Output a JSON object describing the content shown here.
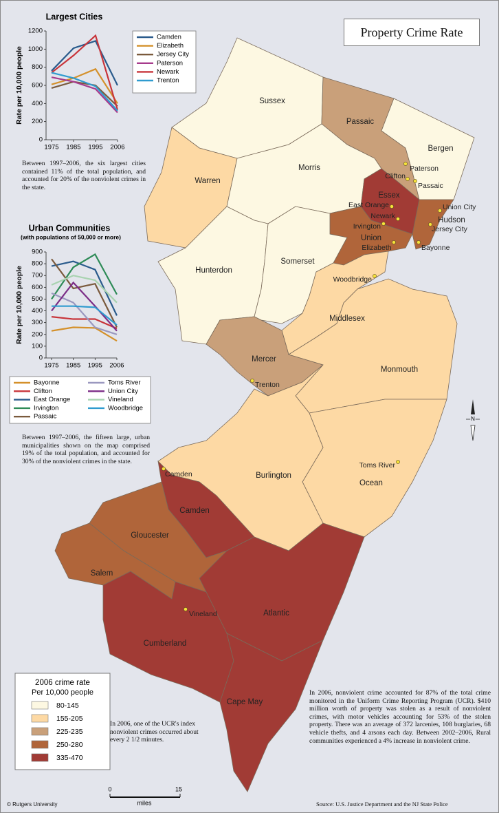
{
  "title": "Property Crime Rate",
  "chart_data": [
    {
      "type": "line",
      "title": "Largest Cities",
      "y_label": "Rate per 10,000 people",
      "categories": [
        "1975",
        "1985",
        "1995",
        "2006"
      ],
      "ylim": [
        0,
        1200
      ],
      "yticks": [
        0,
        200,
        400,
        600,
        800,
        1000,
        1200
      ],
      "series": [
        {
          "name": "Camden",
          "color": "#2a5b8c",
          "values": [
            760,
            1010,
            1090,
            600
          ]
        },
        {
          "name": "Elizabeth",
          "color": "#d4902a",
          "values": [
            610,
            680,
            780,
            400
          ]
        },
        {
          "name": "Jersey City",
          "color": "#7a5a3c",
          "values": [
            570,
            640,
            600,
            370
          ]
        },
        {
          "name": "Paterson",
          "color": "#a63a8c",
          "values": [
            690,
            640,
            560,
            300
          ]
        },
        {
          "name": "Newark",
          "color": "#c8343a",
          "values": [
            740,
            930,
            1150,
            330
          ]
        },
        {
          "name": "Trenton",
          "color": "#2f9bcf",
          "values": [
            740,
            680,
            590,
            320
          ]
        }
      ],
      "note": "Between 1997–2006, the six largest cities contained 11% of the total population, and accounted for 20% of the nonviolent crimes in the state."
    },
    {
      "type": "line",
      "title": "Urban Communities",
      "subtitle": "(with populations of 50,000 or more)",
      "y_label": "Rate per 10,000 people",
      "categories": [
        "1975",
        "1985",
        "1995",
        "2006"
      ],
      "ylim": [
        0,
        900
      ],
      "yticks": [
        0,
        100,
        200,
        300,
        400,
        500,
        600,
        700,
        800,
        900
      ],
      "series": [
        {
          "name": "Bayonne",
          "color": "#d4902a",
          "values": [
            230,
            260,
            255,
            145
          ]
        },
        {
          "name": "Clifton",
          "color": "#c8343a",
          "values": [
            350,
            330,
            330,
            250
          ]
        },
        {
          "name": "East Orange",
          "color": "#2a5b8c",
          "values": [
            780,
            820,
            750,
            360
          ]
        },
        {
          "name": "Irvington",
          "color": "#2e8b57",
          "values": [
            500,
            770,
            880,
            540
          ]
        },
        {
          "name": "Passaic",
          "color": "#7a5a3c",
          "values": [
            840,
            590,
            630,
            260
          ]
        },
        {
          "name": "Toms River",
          "color": "#9a98bf",
          "values": [
            550,
            470,
            260,
            200
          ]
        },
        {
          "name": "Union City",
          "color": "#7b2c86",
          "values": [
            400,
            640,
            440,
            230
          ]
        },
        {
          "name": "Vineland",
          "color": "#a8d3b0",
          "values": [
            620,
            700,
            660,
            470
          ]
        },
        {
          "name": "Woodbridge",
          "color": "#2f9bcf",
          "values": [
            440,
            440,
            430,
            280
          ]
        }
      ],
      "note": "Between 1997–2006, the fifteen large, urban municipalities shown on the map comprised 19% of the total population, and accounted for 30% of the nonviolent crimes in the state."
    }
  ],
  "map_legend": {
    "title": "2006 crime rate",
    "subtitle": "Per 10,000 people",
    "items": [
      {
        "label": "80-145",
        "color": "#fdf8e2"
      },
      {
        "label": "155-205",
        "color": "#fdd9a4"
      },
      {
        "label": "225-235",
        "color": "#c9a07a"
      },
      {
        "label": "250-280",
        "color": "#b0653a"
      },
      {
        "label": "335-470",
        "color": "#a13b35"
      }
    ]
  },
  "counties": [
    {
      "name": "Sussex",
      "color": "#fdf8e2"
    },
    {
      "name": "Passaic",
      "color": "#c9a07a"
    },
    {
      "name": "Bergen",
      "color": "#fdf8e2"
    },
    {
      "name": "Warren",
      "color": "#fdd9a4"
    },
    {
      "name": "Morris",
      "color": "#fdf8e2"
    },
    {
      "name": "Essex",
      "color": "#a13b35"
    },
    {
      "name": "Hudson",
      "color": "#b0653a"
    },
    {
      "name": "Union",
      "color": "#b0653a"
    },
    {
      "name": "Hunterdon",
      "color": "#fdf8e2"
    },
    {
      "name": "Somerset",
      "color": "#fdf8e2"
    },
    {
      "name": "Middlesex",
      "color": "#fdd9a4"
    },
    {
      "name": "Mercer",
      "color": "#c9a07a"
    },
    {
      "name": "Monmouth",
      "color": "#fdd9a4"
    },
    {
      "name": "Ocean",
      "color": "#fdd9a4"
    },
    {
      "name": "Burlington",
      "color": "#fdd9a4"
    },
    {
      "name": "Camden",
      "color": "#a13b35"
    },
    {
      "name": "Atlantic",
      "color": "#a13b35"
    },
    {
      "name": "Gloucester",
      "color": "#b0653a"
    },
    {
      "name": "Salem",
      "color": "#b0653a"
    },
    {
      "name": "Cumberland",
      "color": "#a13b35"
    },
    {
      "name": "Cape May",
      "color": "#a13b35"
    }
  ],
  "cities": [
    "Paterson",
    "Clifton",
    "Passaic",
    "East Orange",
    "Newark",
    "Irvington",
    "Union City",
    "Jersey City",
    "Elizabeth",
    "Bayonne",
    "Woodbridge",
    "Trenton",
    "Toms River",
    "Camden",
    "Vineland"
  ],
  "notes": {
    "ucr": "In 2006, one of the UCR's index nonviolent crimes occurred about every 2 1/2 minutes.",
    "summary": "In 2006, nonviolent crime accounted for 87% of the total crime monitored in the Uniform Crime Reporting Program (UCR). $410 million worth of property was stolen as a result of nonviolent crimes, with motor vehicles accounting for 53% of the stolen property. There was an average of 372 larcenies, 108 burglaries, 68 vehicle thefts, and 4 arsons each day. Between 2002–2006, Rural communities experienced a 4% increase in nonviolent crime."
  },
  "scale": {
    "ticks": [
      0,
      15
    ],
    "unit": "miles"
  },
  "compass": "N",
  "copyright": "© Rutgers University",
  "source": "Source: U.S. Justice Department and the NJ State Police"
}
